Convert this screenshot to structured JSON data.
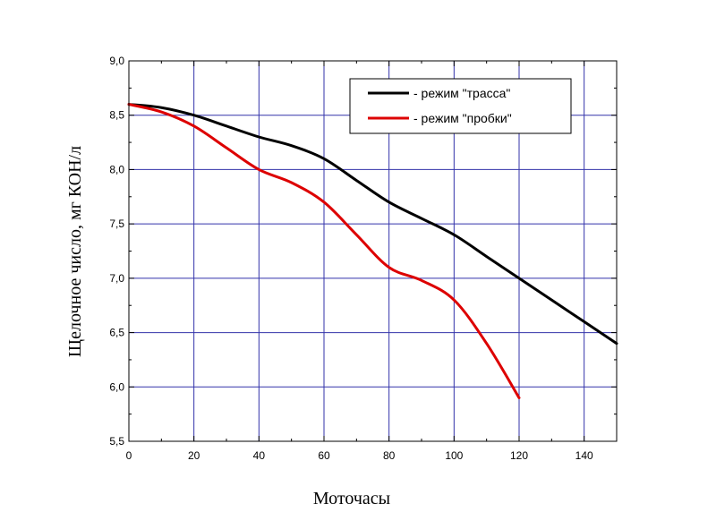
{
  "chart_data": {
    "type": "line",
    "title": "",
    "xlabel": "Моточасы",
    "ylabel": "Щелочное число, мг КОН/л",
    "xlim": [
      0,
      150
    ],
    "ylim": [
      5.5,
      9.0
    ],
    "xticks": [
      0,
      20,
      40,
      60,
      80,
      100,
      120,
      140
    ],
    "xtick_labels": [
      "0",
      "20",
      "40",
      "60",
      "80",
      "100",
      "120",
      "140"
    ],
    "yticks": [
      5.5,
      6.0,
      6.5,
      7.0,
      7.5,
      8.0,
      8.5,
      9.0
    ],
    "ytick_labels": [
      "5,5",
      "6,0",
      "6,5",
      "7,0",
      "7,5",
      "8,0",
      "8,5",
      "9,0"
    ],
    "grid": true,
    "grid_color": "#3333aa",
    "legend_position": "top-right",
    "series": [
      {
        "name": "режим \"трасса\"",
        "legend_label": "-  режим \"трасса\"",
        "color": "#000000",
        "x": [
          0,
          10,
          20,
          30,
          40,
          50,
          60,
          70,
          80,
          90,
          100,
          110,
          120,
          130,
          140,
          150
        ],
        "y": [
          8.6,
          8.57,
          8.5,
          8.4,
          8.3,
          8.22,
          8.1,
          7.9,
          7.7,
          7.55,
          7.4,
          7.2,
          7.0,
          6.8,
          6.6,
          6.4
        ]
      },
      {
        "name": "режим \"пробки\"",
        "legend_label": "-  режим \"пробки\"",
        "color": "#dd0000",
        "x": [
          0,
          10,
          20,
          30,
          40,
          50,
          60,
          70,
          80,
          90,
          100,
          110,
          120
        ],
        "y": [
          8.6,
          8.53,
          8.4,
          8.2,
          8.0,
          7.88,
          7.7,
          7.4,
          7.1,
          6.98,
          6.8,
          6.4,
          5.9
        ]
      }
    ]
  }
}
